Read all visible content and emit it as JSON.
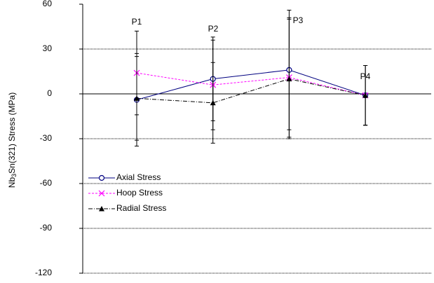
{
  "chart_data": {
    "type": "line",
    "ylabel_parts": [
      "Nb",
      "3",
      "Sn(321) Stress (MPa)"
    ],
    "categories": [
      "P1",
      "P2",
      "P3",
      "P4"
    ],
    "series": [
      {
        "name": "Axial Stress",
        "color": "#000080",
        "marker": "circle",
        "dash": "solid",
        "values": [
          -4,
          10,
          16,
          -1
        ],
        "errors": [
          31,
          28,
          40,
          20
        ]
      },
      {
        "name": "Hoop Stress",
        "color": "#ff00ff",
        "marker": "x",
        "dash": "dashed",
        "values": [
          14,
          6,
          11,
          -1
        ],
        "errors": [
          28,
          30,
          40,
          20
        ]
      },
      {
        "name": "Radial Stress",
        "color": "#000000",
        "marker": "triangle",
        "dash": "dashdot",
        "values": [
          -3,
          -6,
          10,
          -1
        ],
        "errors": [
          28,
          27,
          40,
          20
        ]
      }
    ],
    "ylim": [
      -120,
      60
    ],
    "yticks": [
      -120,
      -90,
      -60,
      -30,
      0,
      30,
      60
    ],
    "grid": "dotted",
    "legend": "lower left"
  }
}
